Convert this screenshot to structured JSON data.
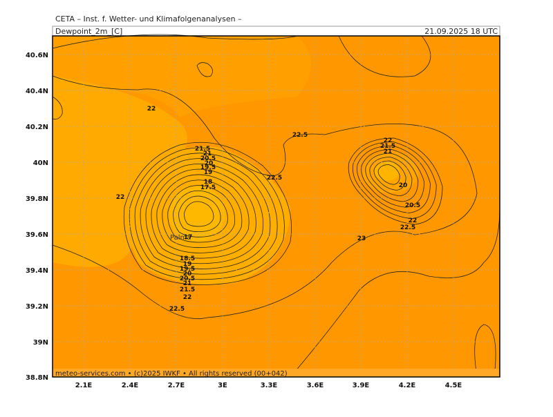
{
  "header": {
    "title": "CETA – Inst. f. Wetter- und Klimafolgenanalysen –",
    "field": "Dewpoint_2m_[C]",
    "valid_time": "21.09.2025 18 UTC"
  },
  "map": {
    "lat_labels": [
      "40.6N",
      "40.4N",
      "40.2N",
      "40N",
      "39.8N",
      "39.6N",
      "39.4N",
      "39.2N",
      "39N",
      "38.8N"
    ],
    "lon_labels": [
      "2.1E",
      "2.4E",
      "2.7E",
      "3E",
      "3.3E",
      "3.6E",
      "3.9E",
      "4.2E",
      "4.5E"
    ],
    "place": "Palma",
    "contour_labels": [
      22,
      22.5,
      22,
      21.5,
      21,
      20.5,
      20,
      19.5,
      19,
      18,
      17.5,
      22.5,
      22,
      21.5,
      21,
      20,
      20.5,
      22,
      22.5,
      23,
      17,
      18.5,
      19,
      19.5,
      20,
      20.5,
      21,
      21.5,
      22,
      22.5
    ]
  },
  "footer": "meteo-services.com • (c)2025 IWKF • All rights reserved (00+042)"
}
